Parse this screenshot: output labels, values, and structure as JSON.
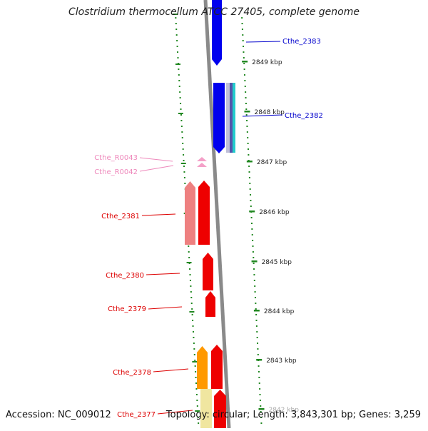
{
  "title": "Clostridium thermocellum ATCC 27405, complete genome",
  "footer": {
    "accession": "Accession: NC_009012",
    "topology": "Topology: circular; Length: 3,843,301 bp; Genes: 3,259"
  },
  "scale_ticks": [
    "2849 kbp",
    "2848 kbp",
    "2847 kbp",
    "2846 kbp",
    "2845 kbp",
    "2844 kbp",
    "2843 kbp",
    "2842 kbp"
  ],
  "gene_labels": [
    {
      "name": "Cthe_2383",
      "color": "#0000cc"
    },
    {
      "name": "Cthe_2382",
      "color": "#0000cc"
    },
    {
      "name": "Cthe_R0043",
      "color": "#ee88bb"
    },
    {
      "name": "Cthe_R0042",
      "color": "#ee88bb"
    },
    {
      "name": "Cthe_2381",
      "color": "#dd0000"
    },
    {
      "name": "Cthe_2380",
      "color": "#dd0000"
    },
    {
      "name": "Cthe_2379",
      "color": "#dd0000"
    },
    {
      "name": "Cthe_2378",
      "color": "#dd0000"
    },
    {
      "name": "Cthe_2377",
      "color": "#dd0000"
    }
  ],
  "colors": {
    "backbone": "#8a8a8a",
    "ruler": "#228822",
    "forward_blue": "#0000ee",
    "rna_pink": "#f4a0c8",
    "red": "#ee0000",
    "salmon": "#ee8080",
    "orange": "#ff9900",
    "pale_yellow": "#f0e6a0",
    "cyan": "#22cccc"
  }
}
